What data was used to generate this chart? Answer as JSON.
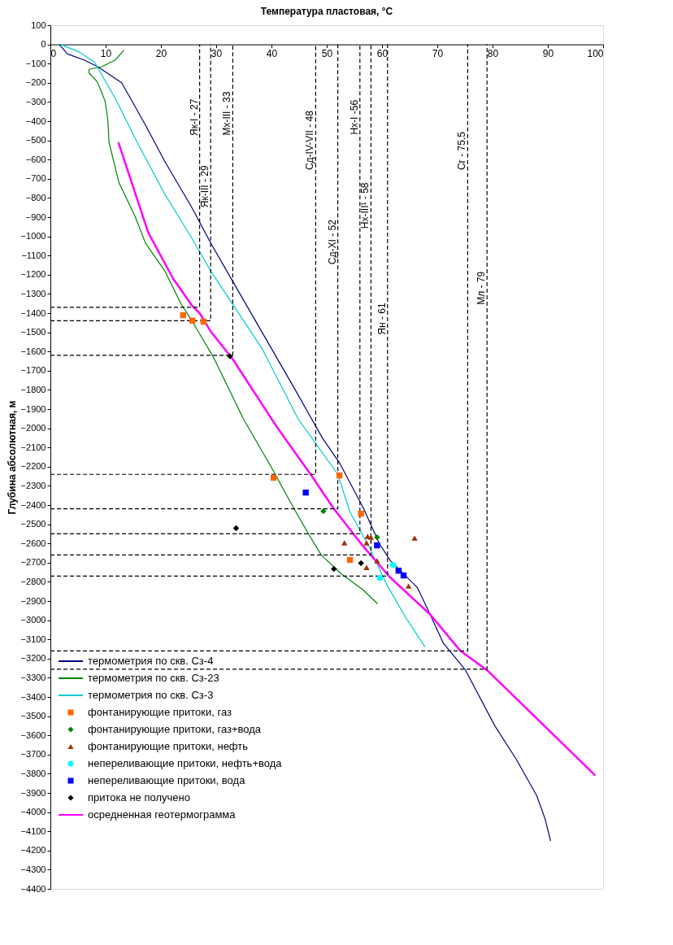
{
  "chart_data": {
    "type": "line",
    "xlabel": "Температура пластовая, °C",
    "ylabel": "Глубина абсолютная, м",
    "xlim": [
      0,
      100
    ],
    "xticks": [
      0,
      10,
      20,
      30,
      40,
      50,
      60,
      70,
      80,
      90,
      100
    ],
    "ylim": [
      -4400,
      100
    ],
    "yticks": [
      100,
      0,
      -100,
      -200,
      -300,
      -400,
      -500,
      -600,
      -700,
      -800,
      -900,
      -1000,
      -1100,
      -1200,
      -1300,
      -1400,
      -1500,
      -1600,
      -1700,
      -1800,
      -1900,
      -2000,
      -2100,
      -2200,
      -2300,
      -2400,
      -2500,
      -2600,
      -2700,
      -2800,
      -2900,
      -3000,
      -3100,
      -3200,
      -3300,
      -3400,
      -3500,
      -3600,
      -3700,
      -3800,
      -3900,
      -4000,
      -4100,
      -4200,
      -4300,
      -4400
    ],
    "grid": false,
    "legend": "bottom left",
    "series": [
      {
        "name": "термометрия по скв. Сз-4",
        "type": "line",
        "color": "#000080",
        "x": [
          1.6,
          3.1,
          6,
          8.5,
          12.9,
          17.2,
          20.7,
          25.6,
          29.1,
          32.5,
          37.5,
          44.3,
          49.2,
          52.3,
          56.7,
          59.5,
          61.5,
          66.4,
          68.7,
          71.1,
          75.1,
          80.4,
          84.3,
          88,
          89.5,
          90.5
        ],
        "values": [
          0,
          -50,
          -80,
          -115,
          -200,
          -420,
          -610,
          -850,
          -1040,
          -1210,
          -1460,
          -1800,
          -2050,
          -2180,
          -2420,
          -2600,
          -2690,
          -2830,
          -2970,
          -3120,
          -3260,
          -3550,
          -3725,
          -3915,
          -4035,
          -4150
        ]
      },
      {
        "name": "термометрия по скв. Сз-23",
        "type": "line",
        "color": "#008000",
        "x": [
          13.3,
          11.8,
          9.4,
          7,
          7,
          8.5,
          9.9,
          10.4,
          10.6,
          12.4,
          15.3,
          17.2,
          20.7,
          23.6,
          25.6,
          29.5,
          34.9,
          40.3,
          44.1,
          46.9,
          49,
          52.7,
          56.7,
          59.2
        ],
        "values": [
          -30,
          -80,
          -115,
          -130,
          -150,
          -195,
          -295,
          -395,
          -510,
          -720,
          -895,
          -1035,
          -1180,
          -1350,
          -1440,
          -1630,
          -1950,
          -2220,
          -2420,
          -2560,
          -2660,
          -2760,
          -2845,
          -2915
        ]
      },
      {
        "name": "термометрия по скв. Сз-3",
        "type": "line",
        "color": "#00cccc",
        "x": [
          1.8,
          5,
          8,
          11.9,
          15.7,
          20.7,
          25.6,
          29,
          38.3,
          44.8,
          52,
          54.2,
          57.7,
          60.9,
          64.3,
          67.8
        ],
        "values": [
          0,
          -36,
          -93,
          -290,
          -510,
          -780,
          -1010,
          -1180,
          -1585,
          -1950,
          -2240,
          -2436,
          -2619,
          -2817,
          -2987,
          -3140
        ]
      },
      {
        "name": "фонтанирующие притоки, газ",
        "type": "scatter",
        "marker": "square",
        "color": "#ff6600",
        "x": [
          24,
          25.7,
          27.7,
          40.4,
          52.3,
          56.2,
          54.2
        ],
        "values": [
          -1411,
          -1439,
          -1445,
          -2258,
          -2246,
          -2445,
          -2686
        ]
      },
      {
        "name": "фонтанирующие притоки, газ+вода",
        "type": "scatter",
        "marker": "diamond",
        "color": "#008000",
        "x": [
          49.4,
          59.1
        ],
        "values": [
          -2432,
          -2568
        ]
      },
      {
        "name": "фонтанирующие притоки, нефть",
        "type": "scatter",
        "marker": "triangle",
        "color": "#993300",
        "x": [
          53.2,
          57.4,
          58,
          57.2,
          59.1,
          57.2,
          65.9,
          64.8
        ],
        "values": [
          -2597,
          -2563,
          -2568,
          -2597,
          -2690,
          -2725,
          -2572,
          -2822
        ]
      },
      {
        "name": "непереливающие притоки, нефть+вода",
        "type": "scatter",
        "marker": "circle",
        "color": "#00ffff",
        "x": [
          62,
          59.6
        ],
        "values": [
          -2712,
          -2780
        ]
      },
      {
        "name": "непереливающие притоки, вода",
        "type": "scatter",
        "marker": "square",
        "color": "#0000ff",
        "x": [
          46.2,
          59.1,
          63,
          63.9
        ],
        "values": [
          -2335,
          -2610,
          -2742,
          -2767
        ]
      },
      {
        "name": "притока не получено",
        "type": "scatter",
        "marker": "diamond",
        "color": "#000000",
        "x": [
          32.5,
          33.6,
          51.3,
          56.2
        ],
        "values": [
          -1625,
          -2521,
          -2733,
          -2703
        ]
      },
      {
        "name": "осредненная геотермограмма",
        "type": "line",
        "color": "#ff00ff",
        "x": [
          12.3,
          17.7,
          22.2,
          25.6,
          27,
          29,
          32.9,
          40.9,
          47,
          51.3,
          56.7,
          61.4,
          68.7,
          74.1,
          79.1,
          98.6
        ],
        "values": [
          -510,
          -980,
          -1220,
          -1360,
          -1400,
          -1495,
          -1636,
          -1990,
          -2237,
          -2420,
          -2619,
          -2775,
          -2970,
          -3157,
          -3263,
          -3809
        ]
      },
      {
        "type": "line",
        "line_style": "dashed",
        "color": "#000000",
        "x": [
          0,
          27,
          27
        ],
        "values": [
          -1370,
          -1370,
          0
        ]
      },
      {
        "type": "line",
        "line_style": "dashed",
        "color": "#000000",
        "x": [
          0,
          29,
          29
        ],
        "values": [
          -1440,
          -1440,
          0
        ]
      },
      {
        "type": "line",
        "line_style": "dashed",
        "color": "#000000",
        "x": [
          0,
          33,
          33
        ],
        "values": [
          -1620,
          -1620,
          0
        ]
      },
      {
        "type": "line",
        "line_style": "dashed",
        "color": "#000000",
        "x": [
          0,
          48,
          48
        ],
        "values": [
          -2240,
          -2240,
          0
        ]
      },
      {
        "type": "line",
        "line_style": "dashed",
        "color": "#000000",
        "x": [
          0,
          52,
          52
        ],
        "values": [
          -2420,
          -2420,
          0
        ]
      },
      {
        "type": "line",
        "line_style": "dashed",
        "color": "#000000",
        "x": [
          0,
          56,
          56
        ],
        "values": [
          -2550,
          -2550,
          0
        ]
      },
      {
        "type": "line",
        "line_style": "dashed",
        "color": "#000000",
        "x": [
          0,
          58,
          58
        ],
        "values": [
          -2660,
          -2660,
          0
        ]
      },
      {
        "type": "line",
        "line_style": "dashed",
        "color": "#000000",
        "x": [
          0,
          61,
          61
        ],
        "values": [
          -2770,
          -2770,
          0
        ]
      },
      {
        "type": "line",
        "line_style": "dashed",
        "color": "#000000",
        "x": [
          0,
          75.5,
          75.5
        ],
        "values": [
          -3160,
          -3160,
          0
        ]
      },
      {
        "type": "line",
        "line_style": "dashed",
        "color": "#000000",
        "x": [
          0,
          79,
          79
        ],
        "values": [
          -3255,
          -3255,
          0
        ]
      }
    ],
    "annotations": [
      {
        "text": "Як-I - 27",
        "x": 27,
        "y": -380
      },
      {
        "text": "Як-III - 29",
        "x": 29,
        "y": -740
      },
      {
        "text": "Мх-III - 33",
        "x": 33,
        "y": -360
      },
      {
        "text": "Сд-IV-VII - 48",
        "x": 48,
        "y": -500
      },
      {
        "text": "Сд-XI - 52",
        "x": 52,
        "y": -1030
      },
      {
        "text": "Нх-I -56",
        "x": 56,
        "y": -380
      },
      {
        "text": "Нх-III¹ - 58",
        "x": 58,
        "y": -840
      },
      {
        "text": "Ян - 61",
        "x": 61,
        "y": -1430
      },
      {
        "text": "Сг - 75.5",
        "x": 75.5,
        "y": -555
      },
      {
        "text": "Мл - 79",
        "x": 79,
        "y": -1270
      }
    ]
  }
}
